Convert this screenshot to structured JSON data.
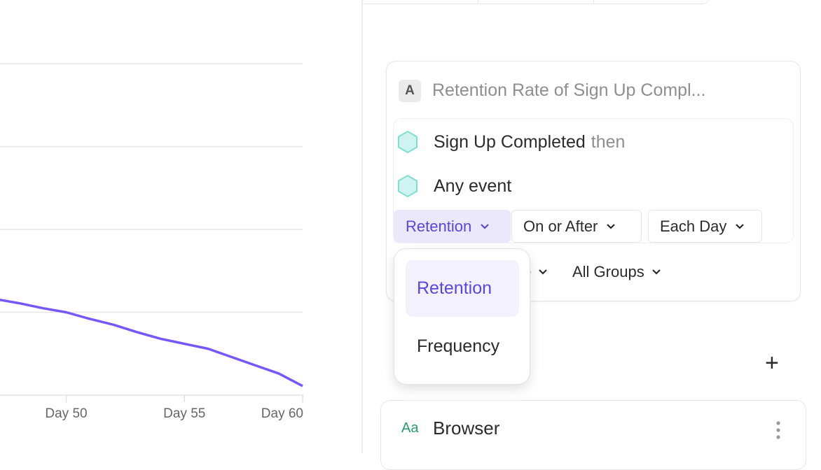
{
  "chart_data": {
    "type": "line",
    "x_tick_labels": [
      "Day 50",
      "Day 55",
      "Day 60"
    ],
    "x_ticks": [
      50,
      55,
      60
    ],
    "xlim": [
      47.2,
      60
    ],
    "ylim": [
      0,
      4
    ],
    "grid": true,
    "series": [
      {
        "color": "#7856ff",
        "x": [
          47,
          48,
          49,
          50,
          51,
          52,
          53,
          54,
          55,
          56,
          57,
          58,
          59,
          60
        ],
        "y": [
          1.16,
          1.11,
          1.05,
          1.0,
          0.92,
          0.85,
          0.76,
          0.68,
          0.62,
          0.56,
          0.46,
          0.36,
          0.26,
          0.11
        ]
      }
    ]
  },
  "metric": {
    "badge": "A",
    "title": "Retention Rate of Sign Up Compl...",
    "events": [
      {
        "name": "Sign Up Completed",
        "suffix": "then"
      },
      {
        "name": "Any event",
        "suffix": ""
      }
    ],
    "controls": [
      {
        "label": "Retention",
        "active": true
      },
      {
        "label": "On or After"
      },
      {
        "label": "Each Day"
      }
    ],
    "row2": {
      "partial": "te",
      "groups": "All Groups"
    }
  },
  "dropdown": {
    "options": [
      {
        "label": "Retention",
        "selected": true
      },
      {
        "label": "Frequency"
      }
    ]
  },
  "breakdown": {
    "type_icon": "Aa",
    "name": "Browser"
  },
  "colors": {
    "accent": "#5b45e0",
    "line": "#7856ff",
    "event_icon": "#7fded2"
  }
}
